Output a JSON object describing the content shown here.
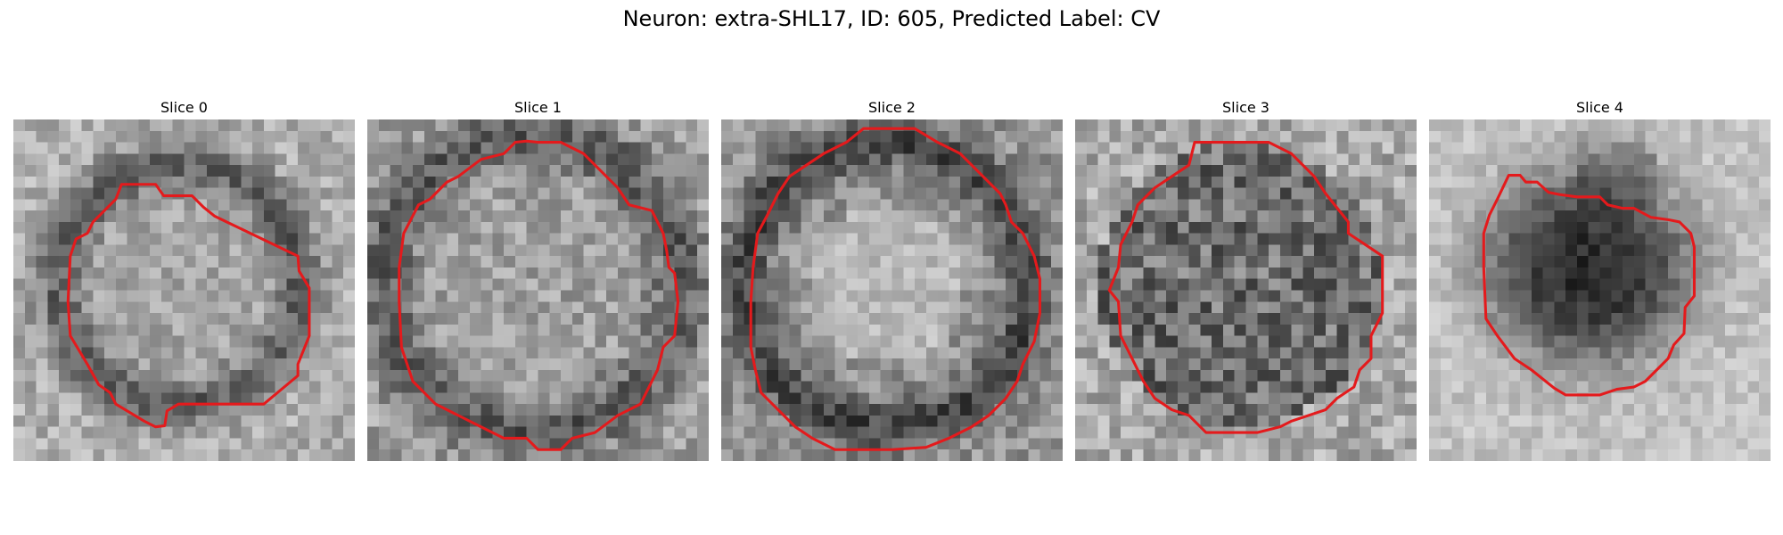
{
  "figure": {
    "title": "Neuron: extra-SHL17, ID: 605, Predicted Label: CV"
  },
  "panels": [
    {
      "title": "Slice 0",
      "tone": "light-center"
    },
    {
      "title": "Slice 1",
      "tone": "light-center"
    },
    {
      "title": "Slice 2",
      "tone": "light-center-dark-ring"
    },
    {
      "title": "Slice 3",
      "tone": "dark-speckled"
    },
    {
      "title": "Slice 4",
      "tone": "dark-blob"
    }
  ],
  "colors": {
    "contour": "#e41a1c",
    "background": "#ffffff"
  }
}
